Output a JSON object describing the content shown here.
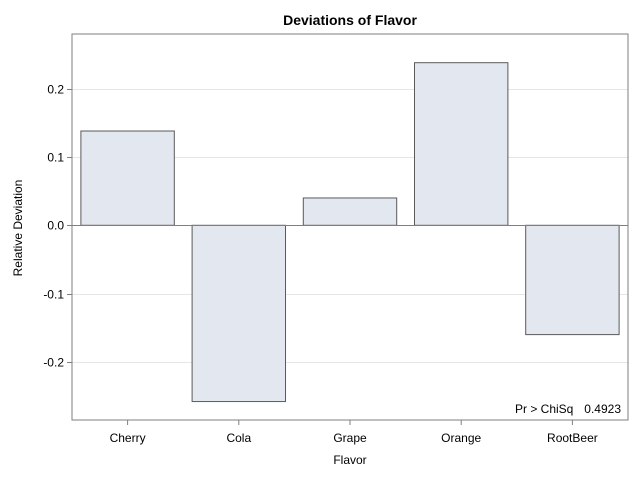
{
  "chart_data": {
    "type": "bar",
    "title": "Deviations of Flavor",
    "xlabel": "Flavor",
    "ylabel": "Relative Deviation",
    "categories": [
      "Cherry",
      "Cola",
      "Grape",
      "Orange",
      "RootBeer"
    ],
    "values": [
      0.138,
      -0.258,
      0.04,
      0.238,
      -0.16
    ],
    "ylim": [
      -0.285,
      0.28
    ],
    "yticks": [
      -0.2,
      -0.1,
      0.0,
      0.1,
      0.2
    ],
    "ytick_labels": [
      "-0.2",
      "-0.1",
      "0.0",
      "0.1",
      "0.2"
    ],
    "grid": true,
    "baseline": 0.0,
    "inset_label": "Pr > ChiSq",
    "inset_value": "0.4923",
    "colors": {
      "bar_fill": "#e3e7f0",
      "bar_stroke": "#5a5a5a",
      "grid": "#e6e6e6",
      "frame": "#7f7f7f",
      "baseline": "#7f7f7f"
    }
  }
}
